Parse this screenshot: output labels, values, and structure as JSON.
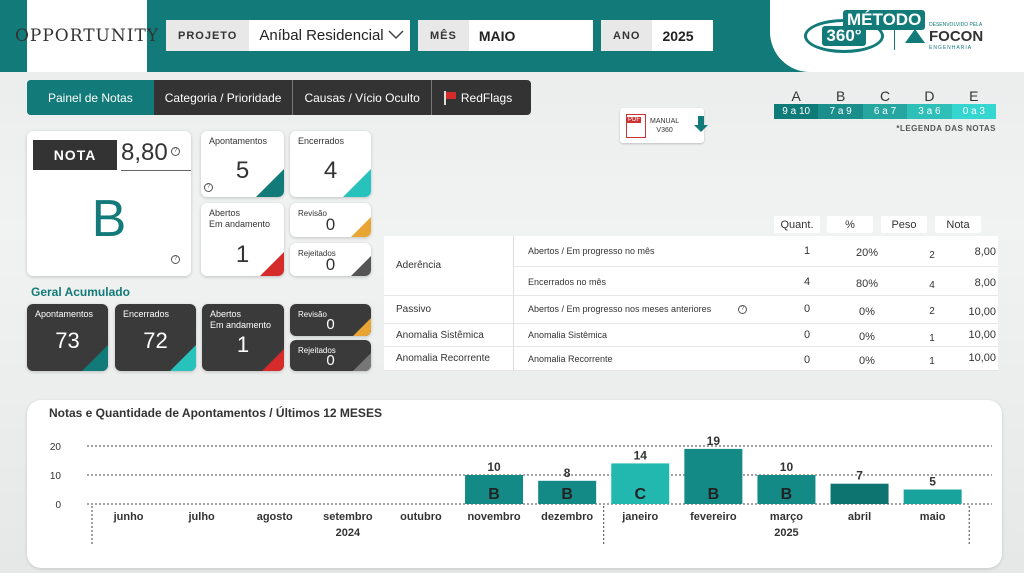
{
  "brand": "OPPORTUNITY",
  "filters": {
    "project_label": "PROJETO",
    "project_value": "Aníbal Residencial",
    "month_label": "MÊS",
    "month_value": "MAIO",
    "year_label": "ANO",
    "year_value": "2025"
  },
  "logos": {
    "metodo": "MÉTODO",
    "v360": "360°",
    "focon_top": "DESENVOLVIDO PELA",
    "focon": "FOCON",
    "focon_sub": "ENGENHARIA"
  },
  "nav": {
    "tabs": [
      "Painel de Notas",
      "Categoria / Prioridade",
      "Causas / Vício Oculto",
      "RedFlags"
    ],
    "active": 0
  },
  "manual": {
    "line1": "MANUAL",
    "line2": "V360"
  },
  "legend": {
    "grades": [
      {
        "letter": "A",
        "range": "9 a 10",
        "color": "#0f7b78"
      },
      {
        "letter": "B",
        "range": "7 a 9",
        "color": "#1a8e8a"
      },
      {
        "letter": "C",
        "range": "6 a 7",
        "color": "#25a6a0"
      },
      {
        "letter": "D",
        "range": "3 a 6",
        "color": "#2ebfb8"
      },
      {
        "letter": "E",
        "range": "0 a 3",
        "color": "#35d6cf"
      }
    ],
    "note": "*LEGENDA DAS NOTAS"
  },
  "nota": {
    "label": "NOTA",
    "value": "8,80",
    "grade": "B"
  },
  "month_cards": {
    "apontamentos_label": "Apontamentos",
    "apontamentos": "5",
    "encerrados_label": "Encerrados",
    "encerrados": "4",
    "abertos_label_1": "Abertos",
    "abertos_label_2": "Em andamento",
    "abertos": "1",
    "revisao_label": "Revisão",
    "revisao": "0",
    "rejeitados_label": "Rejeitados",
    "rejeitados": "0"
  },
  "geral": {
    "title": "Geral Acumulado",
    "apontamentos_label": "Apontamentos",
    "apontamentos": "73",
    "encerrados_label": "Encerrados",
    "encerrados": "72",
    "abertos_label_1": "Abertos",
    "abertos_label_2": "Em andamento",
    "abertos": "1",
    "revisao_label": "Revisão",
    "revisao": "0",
    "rejeitados_label": "Rejeitados",
    "rejeitados": "0"
  },
  "table": {
    "headers": [
      "Quant.",
      "%",
      "Peso",
      "Nota"
    ],
    "groups": [
      {
        "name": "Aderência"
      },
      {
        "name": "Passivo"
      },
      {
        "name": "Anomalia Sistêmica"
      },
      {
        "name": "Anomalia Recorrente"
      }
    ],
    "rows": [
      {
        "desc": "Abertos / Em progresso no mês",
        "quant": "1",
        "pct": "20%",
        "peso": "2",
        "nota": "8,00"
      },
      {
        "desc": "Encerrados no mês",
        "quant": "4",
        "pct": "80%",
        "peso": "4",
        "nota": "8,00"
      },
      {
        "desc": "Abertos / Em progresso nos meses anteriores",
        "quant": "0",
        "pct": "0%",
        "peso": "2",
        "nota": "10,00"
      },
      {
        "desc": "Anomalia Sistêmica",
        "quant": "0",
        "pct": "0%",
        "peso": "1",
        "nota": "10,00"
      },
      {
        "desc": "Anomalia Recorrente",
        "quant": "0",
        "pct": "0%",
        "peso": "1",
        "nota": "10,00"
      }
    ]
  },
  "chart_data": {
    "type": "bar",
    "title": "Notas e Quantidade de Apontamentos / Últimos 12 MESES",
    "categories": [
      "junho",
      "julho",
      "agosto",
      "setembro",
      "outubro",
      "novembro",
      "dezembro",
      "janeiro",
      "fevereiro",
      "março",
      "abril",
      "maio"
    ],
    "years": [
      {
        "label": "2024",
        "from": 0,
        "to": 6
      },
      {
        "label": "2025",
        "from": 7,
        "to": 11
      }
    ],
    "values": [
      null,
      null,
      null,
      null,
      null,
      10,
      8,
      14,
      19,
      10,
      7,
      5
    ],
    "grades": [
      "",
      "",
      "",
      "",
      "",
      "B",
      "B",
      "C",
      "B",
      "B",
      "",
      ""
    ],
    "colors": [
      "",
      "",
      "",
      "",
      "",
      "#148a86",
      "#148a86",
      "#22b8b0",
      "#148a86",
      "#148a86",
      "#0d7470",
      "#18a39d"
    ],
    "yticks": [
      0,
      10,
      20
    ],
    "ylim": [
      0,
      20
    ],
    "grid": true
  }
}
